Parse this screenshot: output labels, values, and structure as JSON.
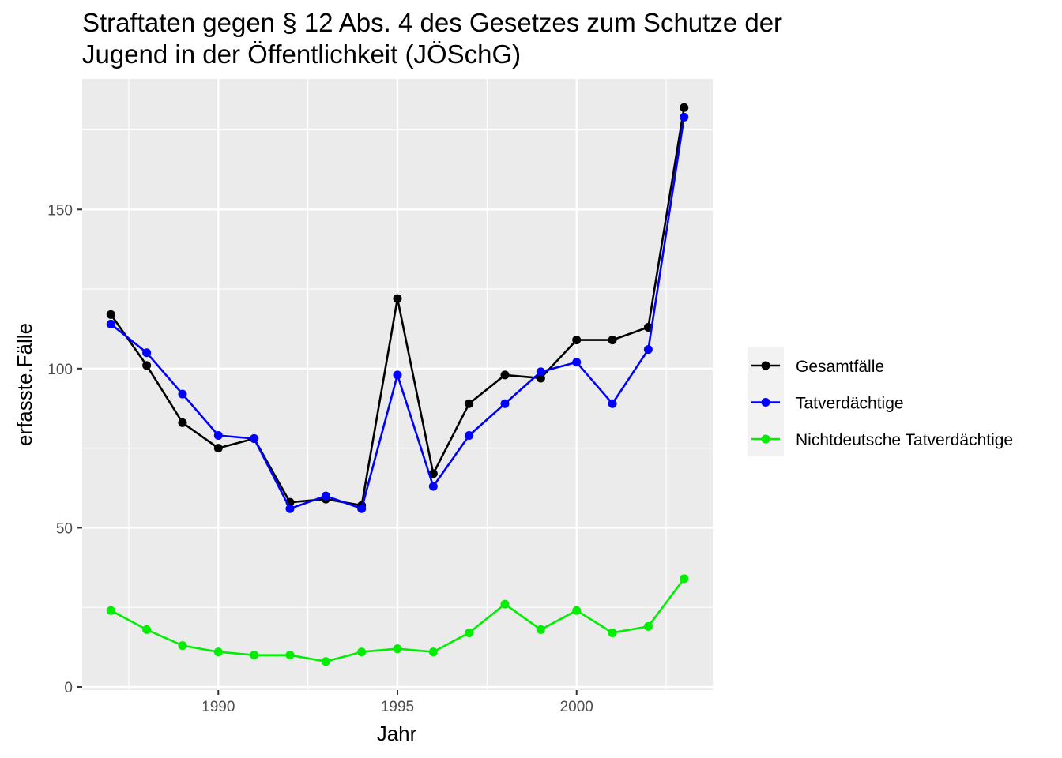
{
  "chart_data": {
    "type": "line",
    "title_lines": [
      "Straftaten gegen § 12 Abs. 4 des Gesetzes zum Schutze der",
      "Jugend in der Öffentlichkeit (JÖSchG)"
    ],
    "xlabel": "Jahr",
    "ylabel": "erfasste.Fälle",
    "xlim": [
      1986.2,
      2003.8
    ],
    "ylim": [
      -1,
      191
    ],
    "x_ticks": [
      1990,
      1995,
      2000
    ],
    "x_minor": [
      1987.5,
      1992.5,
      1997.5,
      2002.5
    ],
    "y_ticks": [
      0,
      50,
      100,
      150
    ],
    "y_minor": [
      25,
      75,
      125,
      175
    ],
    "grid": true,
    "legend_position": "right",
    "x": [
      1987,
      1988,
      1989,
      1990,
      1991,
      1992,
      1993,
      1994,
      1995,
      1996,
      1997,
      1998,
      1999,
      2000,
      2001,
      2002,
      2003
    ],
    "series": [
      {
        "name": "Gesamtfälle",
        "color": "#000000",
        "values": [
          117,
          101,
          83,
          75,
          78,
          58,
          59,
          57,
          122,
          67,
          89,
          98,
          97,
          109,
          109,
          113,
          182
        ]
      },
      {
        "name": "Tatverdächtige",
        "color": "#0000ff",
        "values": [
          114,
          105,
          92,
          79,
          78,
          56,
          60,
          56,
          98,
          63,
          79,
          89,
          99,
          102,
          89,
          106,
          179
        ]
      },
      {
        "name": "Nichtdeutsche Tatverdächtige",
        "color": "#00ee00",
        "values": [
          24,
          18,
          13,
          11,
          10,
          10,
          8,
          11,
          12,
          11,
          17,
          26,
          18,
          24,
          17,
          19,
          34
        ]
      }
    ]
  }
}
